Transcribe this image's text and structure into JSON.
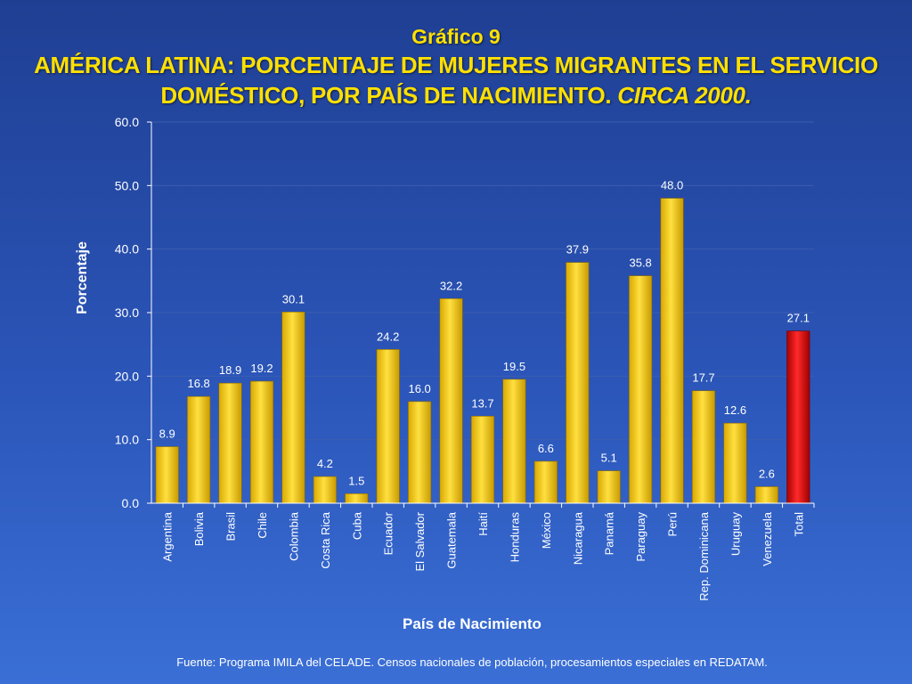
{
  "title": {
    "line1": "Gráfico 9",
    "line2": "AMÉRICA LATINA: PORCENTAJE DE MUJERES MIGRANTES EN EL SERVICIO",
    "line3_main": "DOMÉSTICO, POR PAÍS DE NACIMIENTO. ",
    "line3_italic": "CIRCA 2000."
  },
  "source": "Fuente: Programa IMILA del CELADE. Censos nacionales de población, procesamientos especiales en REDATAM.",
  "colors": {
    "bar": "#f0c400",
    "bar_highlight": "#cc0000",
    "text": "#ffffff",
    "title": "#ffe000"
  },
  "chart_data": {
    "type": "bar",
    "xlabel": "País de Nacimiento",
    "ylabel": "Porcentaje",
    "ylim": [
      0,
      60
    ],
    "yticks": [
      "0.0",
      "10.0",
      "20.0",
      "30.0",
      "40.0",
      "50.0",
      "60.0"
    ],
    "grid": true,
    "categories": [
      "Argentina",
      "Bolivia",
      "Brasil",
      "Chile",
      "Colombia",
      "Costa Rica",
      "Cuba",
      "Ecuador",
      "El Salvador",
      "Guatemala",
      "Haití",
      "Honduras",
      "México",
      "Nicaragua",
      "Panamá",
      "Paraguay",
      "Perú",
      "Rep. Dominicana",
      "Uruguay",
      "Venezuela",
      "Total"
    ],
    "values": [
      8.9,
      16.8,
      18.9,
      19.2,
      30.1,
      4.2,
      1.5,
      24.2,
      16.0,
      32.2,
      13.7,
      19.5,
      6.6,
      37.9,
      5.1,
      35.8,
      48.0,
      17.7,
      12.6,
      2.6,
      27.1
    ],
    "value_labels": [
      "8.9",
      "16.8",
      "18.9",
      "19.2",
      "30.1",
      "4.2",
      "1.5",
      "24.2",
      "16.0",
      "32.2",
      "13.7",
      "19.5",
      "6.6",
      "37.9",
      "5.1",
      "35.8",
      "48.0",
      "17.7",
      "12.6",
      "2.6",
      "27.1"
    ],
    "highlight_category": "Total"
  }
}
